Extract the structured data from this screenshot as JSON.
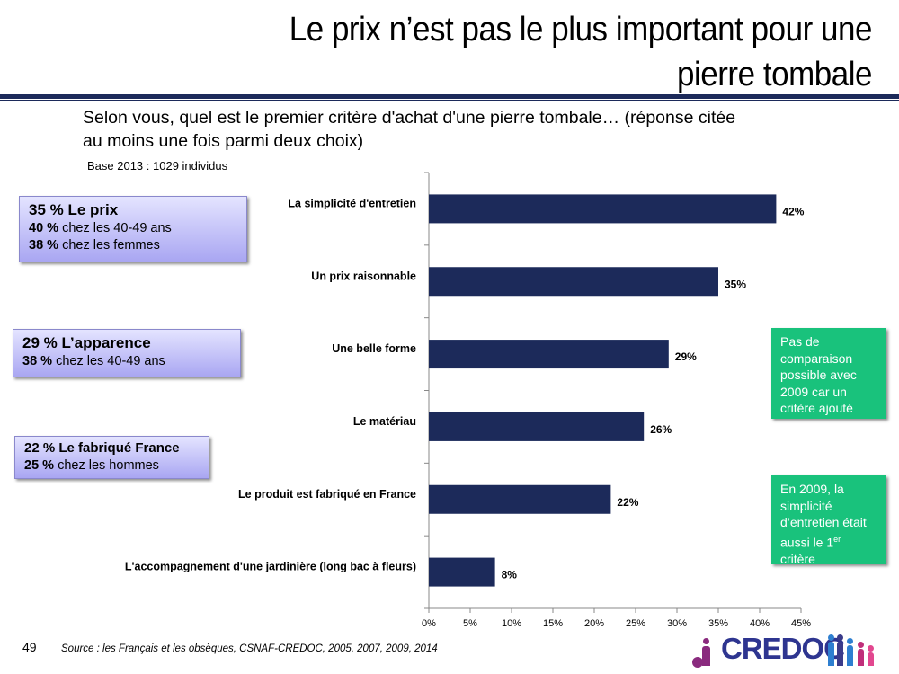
{
  "slide": {
    "title_line1": "Le prix n’est pas le plus important pour une",
    "title_line2": "pierre tombale",
    "question_line1": "Selon vous, quel est le premier critère d'achat d'une pierre tombale… (réponse citée",
    "question_line2": "au moins une fois parmi deux choix)",
    "base": "Base 2013 : 1029 individus",
    "page_number": "49",
    "source": "Source : les Français et les obsèques, CSNAF-CREDOC, 2005, 2007, 2009, 2014",
    "logo_text": "CREDOC"
  },
  "callouts": [
    {
      "head": "35 % Le prix",
      "l1_bold": "40 %",
      "l1_text": " chez les 40-49 ans",
      "l2_bold": "38 %",
      "l2_text": " chez les femmes"
    },
    {
      "head": "29 % L’apparence",
      "l1_bold": "38 %",
      "l1_text": " chez les 40-49 ans"
    },
    {
      "head": "22 % Le fabriqué France",
      "l1_bold": "25 %",
      "l1_text": " chez les hommes"
    }
  ],
  "notes": {
    "note1": "Pas de comparaison possible avec 2009 car un critère ajouté",
    "note2_pre": "En 2009, la simplicité d’entretien était aussi le 1",
    "note2_sup": "er",
    "note2_post": " critère"
  },
  "colors": {
    "bar": "#1c2a5a",
    "title_rule": "#1c2a5a",
    "callout_fill": "#b7b4f5",
    "note_fill": "#19c27c",
    "logo": "#2e3590"
  },
  "chart_data": {
    "type": "bar",
    "orientation": "horizontal",
    "categories": [
      "La simplicité d'entretien",
      "Un prix raisonnable",
      "Une belle forme",
      "Le matériau",
      "Le produit est fabriqué en France",
      "L'accompagnement d'une jardinière (long bac à fleurs)"
    ],
    "values": [
      42,
      35,
      29,
      26,
      22,
      8
    ],
    "value_labels": [
      "42%",
      "35%",
      "29%",
      "26%",
      "22%",
      "8%"
    ],
    "xlim": [
      0,
      45
    ],
    "xticks": [
      "0%",
      "5%",
      "10%",
      "15%",
      "20%",
      "25%",
      "30%",
      "35%",
      "40%",
      "45%"
    ],
    "grid": false,
    "legend": "none"
  }
}
